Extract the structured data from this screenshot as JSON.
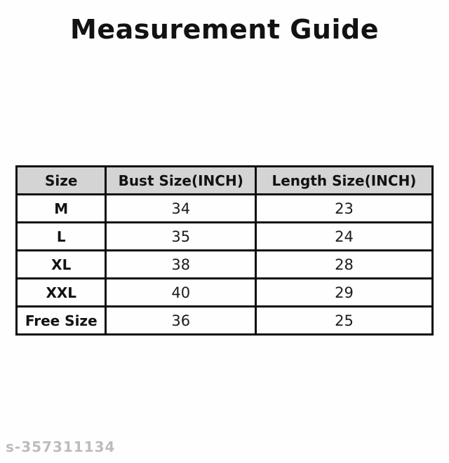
{
  "title": "Measurement Guide",
  "table": {
    "headers": {
      "size": "Size",
      "bust": "Bust Size(INCH)",
      "length": "Length Size(INCH)"
    },
    "rows": [
      {
        "size": "M",
        "bust": "34",
        "length": "23"
      },
      {
        "size": "L",
        "bust": "35",
        "length": "24"
      },
      {
        "size": "XL",
        "bust": "38",
        "length": "28"
      },
      {
        "size": "XXL",
        "bust": "40",
        "length": "29"
      },
      {
        "size": "Free Size",
        "bust": "36",
        "length": "25"
      }
    ]
  },
  "watermark": "s-357311134",
  "colors": {
    "header_bg": "#d4d4d4",
    "border": "#0d0d0d",
    "title_text": "#121212",
    "watermark_text": "#bcbcbc",
    "background": "#fefefe"
  }
}
